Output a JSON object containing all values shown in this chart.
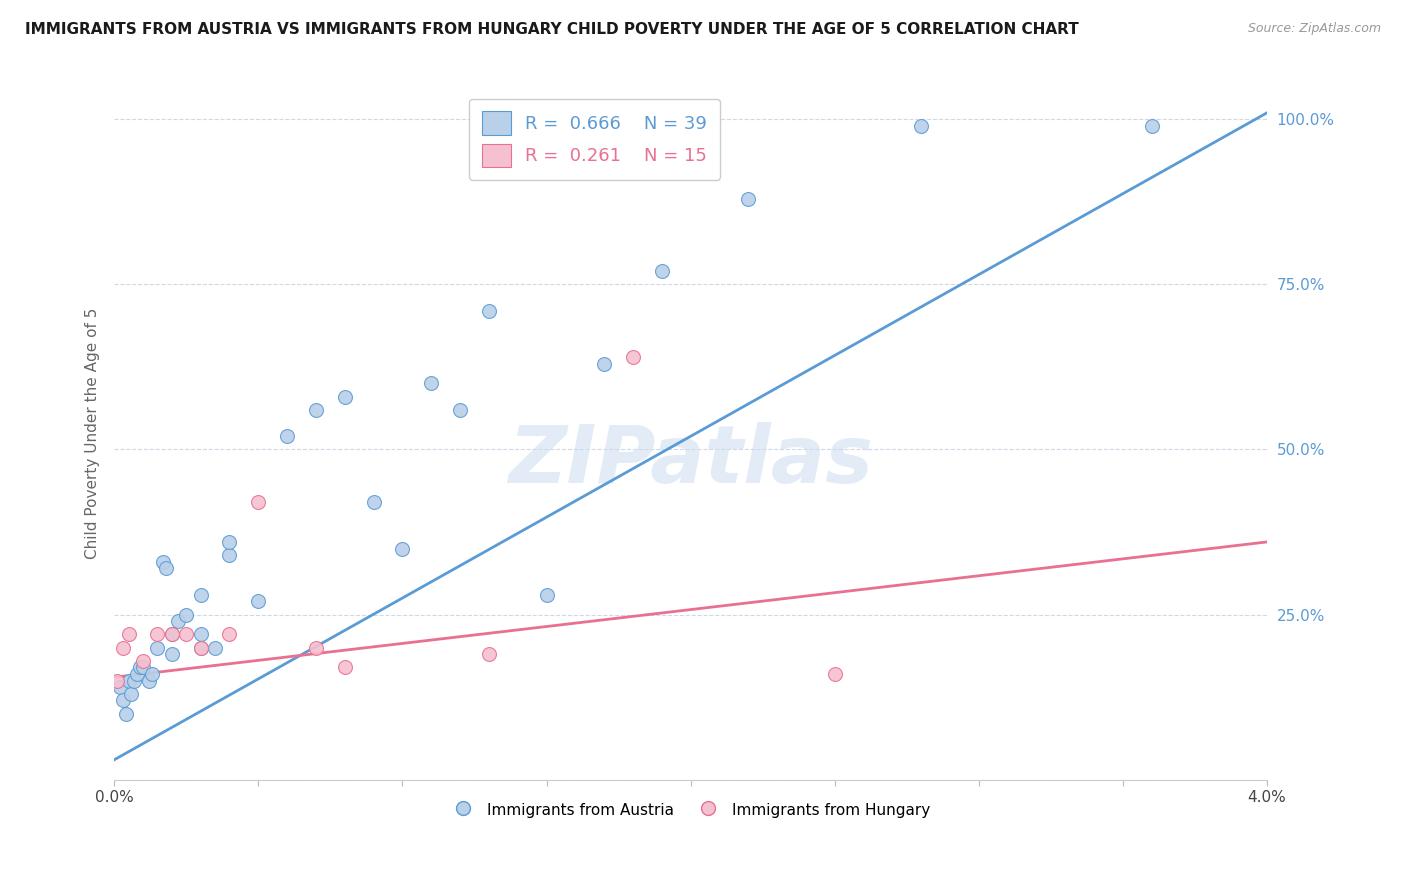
{
  "title": "IMMIGRANTS FROM AUSTRIA VS IMMIGRANTS FROM HUNGARY CHILD POVERTY UNDER THE AGE OF 5 CORRELATION CHART",
  "source": "Source: ZipAtlas.com",
  "ylabel": "Child Poverty Under the Age of 5",
  "r_austria": 0.666,
  "n_austria": 39,
  "r_hungary": 0.261,
  "n_hungary": 15,
  "austria_color": "#b8d0e8",
  "hungary_color": "#f5c0d0",
  "austria_line_color": "#5b9bd5",
  "hungary_line_color": "#e87090",
  "background_color": "#ffffff",
  "grid_color": "#d0d8e8",
  "watermark": "ZIPatlas",
  "austria_x": [
    0.0002,
    0.0003,
    0.0004,
    0.0005,
    0.0006,
    0.0007,
    0.0008,
    0.0009,
    0.001,
    0.0012,
    0.0013,
    0.0015,
    0.0017,
    0.0018,
    0.002,
    0.002,
    0.0022,
    0.0025,
    0.003,
    0.003,
    0.003,
    0.0035,
    0.004,
    0.004,
    0.005,
    0.006,
    0.007,
    0.008,
    0.009,
    0.01,
    0.011,
    0.012,
    0.013,
    0.015,
    0.017,
    0.019,
    0.022,
    0.028,
    0.036
  ],
  "austria_y": [
    0.14,
    0.12,
    0.1,
    0.15,
    0.13,
    0.15,
    0.16,
    0.17,
    0.17,
    0.15,
    0.16,
    0.2,
    0.33,
    0.32,
    0.19,
    0.22,
    0.24,
    0.25,
    0.2,
    0.22,
    0.28,
    0.2,
    0.34,
    0.36,
    0.27,
    0.52,
    0.56,
    0.58,
    0.42,
    0.35,
    0.6,
    0.56,
    0.71,
    0.28,
    0.63,
    0.77,
    0.88,
    0.99,
    0.99
  ],
  "hungary_x": [
    0.0001,
    0.0003,
    0.0005,
    0.001,
    0.0015,
    0.002,
    0.0025,
    0.003,
    0.004,
    0.005,
    0.007,
    0.008,
    0.013,
    0.018,
    0.025
  ],
  "hungary_y": [
    0.15,
    0.2,
    0.22,
    0.18,
    0.22,
    0.22,
    0.22,
    0.2,
    0.22,
    0.42,
    0.2,
    0.17,
    0.19,
    0.64,
    0.16
  ],
  "blue_line_x": [
    0.0,
    0.04
  ],
  "blue_line_y": [
    0.03,
    1.01
  ],
  "pink_line_x": [
    0.0,
    0.04
  ],
  "pink_line_y": [
    0.155,
    0.36
  ],
  "xmin": 0.0,
  "xmax": 0.04,
  "ymin": 0.0,
  "ymax": 1.05,
  "yticks": [
    0.0,
    0.25,
    0.5,
    0.75,
    1.0
  ],
  "ytick_labels": [
    "",
    "25.0%",
    "50.0%",
    "75.0%",
    "100.0%"
  ],
  "marker_size": 100
}
